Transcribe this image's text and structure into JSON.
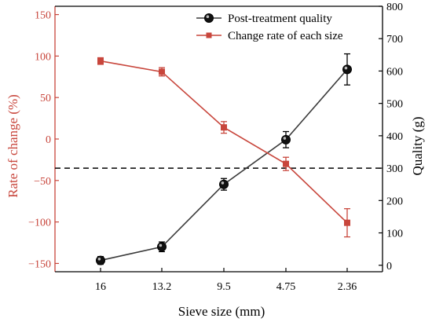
{
  "chart_data": {
    "type": "line",
    "categories": [
      "16",
      "13.2",
      "9.5",
      "4.75",
      "2.36"
    ],
    "xlabel": "Sieve size (mm)",
    "y_left": {
      "label": "Rate of change (%)",
      "lim": [
        -160,
        160
      ],
      "ticks": [
        150,
        100,
        50,
        0,
        -50,
        -100,
        -150
      ],
      "tick_labels": [
        "150",
        "100",
        "50",
        "0",
        "−50",
        "−100",
        "−150"
      ],
      "color": "#c8463c"
    },
    "y_right": {
      "label": "Quality (g)",
      "lim": [
        -20,
        800
      ],
      "ticks": [
        0,
        100,
        200,
        300,
        400,
        500,
        600,
        700,
        800
      ],
      "tick_labels": [
        "0",
        "100",
        "200",
        "300",
        "400",
        "500",
        "600",
        "700",
        "800"
      ],
      "color": "#000000"
    },
    "series": [
      {
        "name": "Post-treatment quality",
        "axis": "right",
        "values": [
          15,
          57,
          250,
          388,
          605
        ],
        "errors": [
          12,
          15,
          18,
          25,
          48
        ],
        "color": "#3a3a3a",
        "marker": "circle"
      },
      {
        "name": "Change rate of each size",
        "axis": "left",
        "values": [
          94,
          81,
          14,
          -30,
          -101
        ],
        "errors": [
          4,
          5,
          7,
          8,
          17
        ],
        "color": "#c8463c",
        "marker": "square"
      }
    ],
    "reference_line": {
      "axis": "right",
      "value": 300,
      "style": "dashed",
      "color": "#000000"
    },
    "legend": "top-right",
    "grid": false
  }
}
